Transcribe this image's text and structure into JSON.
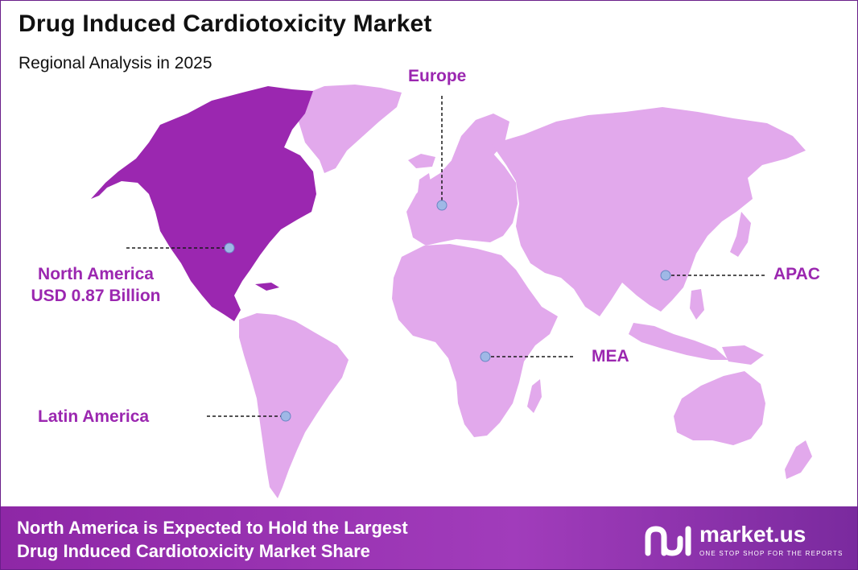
{
  "header": {
    "title": "Drug Induced Cardiotoxicity  Market",
    "subtitle": "Regional Analysis in 2025"
  },
  "regions": {
    "north_america": {
      "name": "North America",
      "value": "USD 0.87 Billion",
      "color": "#9b27b0"
    },
    "europe": {
      "name": "Europe",
      "color": "#e2a9ec"
    },
    "apac": {
      "name": "APAC",
      "color": "#e2a9ec"
    },
    "mea": {
      "name": "MEA",
      "color": "#e2a9ec"
    },
    "latin_america": {
      "name": "Latin America",
      "color": "#e2a9ec"
    }
  },
  "colors": {
    "highlight": "#9b27b0",
    "land": "#e2a9ec",
    "marker": "#9fb8e6",
    "label": "#9b27b0",
    "footer": "#9b35b5"
  },
  "footer": {
    "line1": "North America is Expected to Hold the Largest",
    "line2": "Drug Induced Cardiotoxicity Market Share"
  },
  "logo": {
    "name": "market.us",
    "tagline": "ONE STOP SHOP FOR THE REPORTS",
    "icon": "market-us-logo-icon"
  }
}
